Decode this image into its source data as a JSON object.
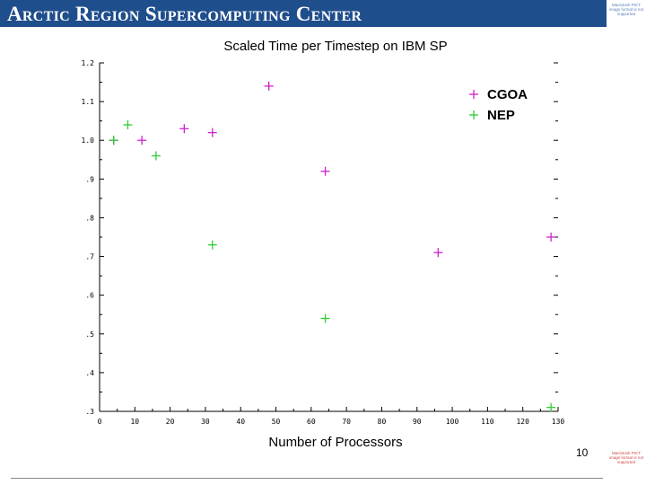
{
  "header": {
    "title": "Arctic Region Supercomputing Center",
    "top_note": "Macintosh PICT image format is not supported",
    "bottom_note": "Macintosh PICT image format is not supported"
  },
  "page_number": "10",
  "colors": {
    "header_bg": "#1f4e8c",
    "cgoa": "#cc22cc",
    "nep": "#33cc33"
  },
  "chart_data": {
    "type": "scatter",
    "title": "Scaled Time per Timestep on IBM SP",
    "xlabel": "Number of Processors",
    "ylabel": "",
    "xlim": [
      0,
      130
    ],
    "ylim": [
      0.3,
      1.2
    ],
    "x_ticks": [
      "0",
      "10",
      "20",
      "30",
      "40",
      "50",
      "60",
      "70",
      "80",
      "90",
      "100",
      "110",
      "120",
      "130"
    ],
    "y_ticks": [
      ".3",
      ".4",
      ".5",
      ".6",
      ".7",
      ".8",
      ".9",
      "1.0",
      "1.1",
      "1.2"
    ],
    "legend_position": "top-right",
    "series": [
      {
        "name": "CGOA",
        "color": "#cc22cc",
        "points": [
          [
            4,
            1.0
          ],
          [
            12,
            1.0
          ],
          [
            24,
            1.03
          ],
          [
            32,
            1.02
          ],
          [
            48,
            1.14
          ],
          [
            64,
            0.92
          ],
          [
            96,
            0.71
          ],
          [
            128,
            0.75
          ]
        ]
      },
      {
        "name": "NEP",
        "color": "#33cc33",
        "points": [
          [
            4,
            1.0
          ],
          [
            8,
            1.04
          ],
          [
            16,
            0.96
          ],
          [
            32,
            0.73
          ],
          [
            64,
            0.54
          ],
          [
            128,
            0.31
          ]
        ]
      }
    ]
  }
}
